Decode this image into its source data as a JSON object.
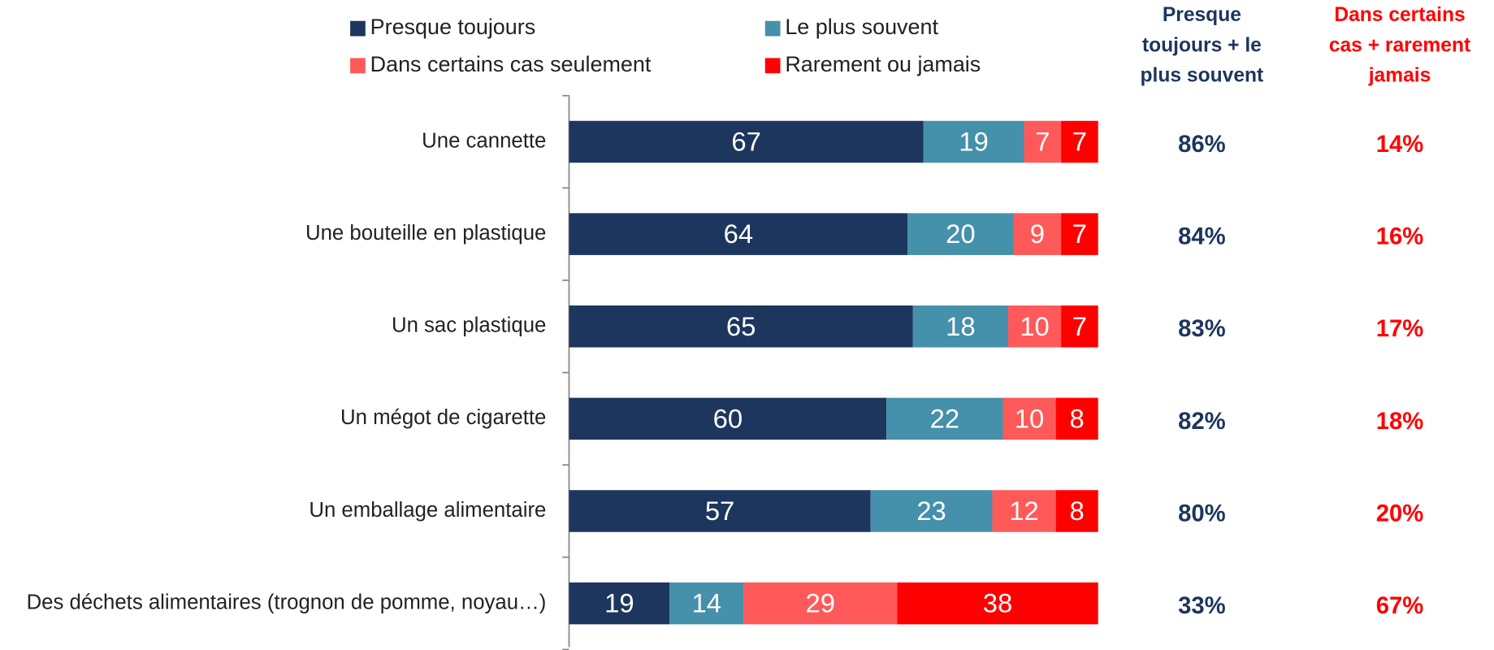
{
  "chart_data": {
    "type": "stacked-barh",
    "categories": [
      "Une cannette",
      "Une bouteille en plastique",
      "Un sac plastique",
      "Un mégot de cigarette",
      "Un emballage alimentaire",
      "Des déchets alimentaires (trognon de pomme, noyau…)"
    ],
    "series": [
      {
        "name": "Presque toujours",
        "color": "#1d365d",
        "values": [
          67,
          64,
          65,
          60,
          57,
          19
        ]
      },
      {
        "name": "Le plus souvent",
        "color": "#4590aa",
        "values": [
          19,
          20,
          18,
          22,
          23,
          14
        ]
      },
      {
        "name": "Dans certains cas seulement",
        "color": "#ff5959",
        "values": [
          7,
          9,
          10,
          10,
          12,
          29
        ]
      },
      {
        "name": "Rarement ou jamais",
        "color": "#ff0000",
        "values": [
          7,
          7,
          7,
          8,
          8,
          38
        ]
      }
    ],
    "xlim": [
      0,
      100
    ],
    "summary_columns": [
      {
        "header": "Presque toujours + le plus souvent",
        "color": "#1d365d",
        "values": [
          86,
          84,
          83,
          82,
          80,
          33
        ],
        "value_labels": [
          "86%",
          "84%",
          "83%",
          "82%",
          "80%",
          "33%"
        ]
      },
      {
        "header": "Dans certains cas + rarement jamais",
        "color": "#ff0000",
        "values": [
          14,
          16,
          17,
          18,
          20,
          67
        ],
        "value_labels": [
          "14%",
          "16%",
          "17%",
          "18%",
          "20%",
          "67%"
        ]
      }
    ]
  }
}
